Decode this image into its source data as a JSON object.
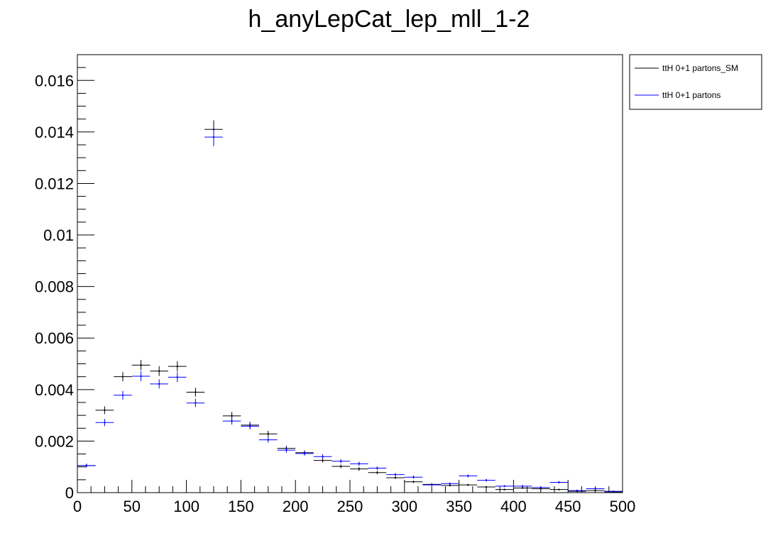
{
  "chart_data": {
    "type": "scatter",
    "title": "h_anyLepCat_lep_mll_1-2",
    "xlabel": "",
    "ylabel": "",
    "xlim": [
      0,
      500
    ],
    "ylim": [
      0,
      0.017
    ],
    "grid": false,
    "legend_position": "top-right-outside",
    "x_ticks": [
      "0",
      "50",
      "100",
      "150",
      "200",
      "250",
      "300",
      "350",
      "400",
      "450",
      "500"
    ],
    "y_ticks": [
      "0",
      "0.002",
      "0.004",
      "0.006",
      "0.008",
      "0.01",
      "0.012",
      "0.014",
      "0.016"
    ],
    "bin_width": 16.67,
    "x": [
      8.33,
      25,
      41.67,
      58.33,
      75,
      91.67,
      108.33,
      125,
      141.67,
      158.33,
      175,
      191.67,
      208.33,
      225,
      241.67,
      258.33,
      275,
      291.67,
      308.33,
      325,
      341.67,
      358.33,
      375,
      391.67,
      408.33,
      425,
      441.67,
      458.33,
      475,
      491.67
    ],
    "series": [
      {
        "name": "ttH 0+1 partons_SM",
        "color": "#000000",
        "values": [
          0.00105,
          0.0032,
          0.0045,
          0.00495,
          0.00472,
          0.0049,
          0.0039,
          0.0141,
          0.00298,
          0.00262,
          0.00228,
          0.00172,
          0.00155,
          0.00125,
          0.00102,
          0.00092,
          0.00078,
          0.00058,
          0.00042,
          0.00032,
          0.00028,
          0.0003,
          0.00022,
          0.00012,
          0.00018,
          0.00015,
          0.00012,
          5e-05,
          8e-05,
          3e-05
        ],
        "errors": [
          7e-05,
          0.00015,
          0.00018,
          0.0002,
          0.00019,
          0.0002,
          0.00017,
          0.00035,
          0.00015,
          0.00013,
          0.00012,
          0.0001,
          9e-05,
          8e-05,
          7e-05,
          7e-05,
          6e-05,
          5e-05,
          4e-05,
          4e-05,
          4e-05,
          4e-05,
          3e-05,
          3e-05,
          3e-05,
          3e-05,
          3e-05,
          2e-05,
          2e-05,
          2e-05
        ]
      },
      {
        "name": "ttH 0+1 partons",
        "color": "#0000ff",
        "values": [
          0.00105,
          0.00272,
          0.00378,
          0.00452,
          0.00422,
          0.00448,
          0.00348,
          0.0138,
          0.00278,
          0.00258,
          0.00205,
          0.00165,
          0.00152,
          0.0014,
          0.00122,
          0.00112,
          0.00095,
          0.0007,
          0.0006,
          0.0003,
          0.00035,
          0.00065,
          0.00048,
          0.00025,
          0.00025,
          0.0002,
          0.0004,
          8e-05,
          0.00015,
          5e-05
        ],
        "errors": [
          7e-05,
          0.00014,
          0.00017,
          0.00019,
          0.00018,
          0.00019,
          0.00016,
          0.00035,
          0.00014,
          0.00013,
          0.00011,
          0.0001,
          9e-05,
          9e-05,
          8e-05,
          8e-05,
          7e-05,
          6e-05,
          6e-05,
          4e-05,
          4e-05,
          6e-05,
          5e-05,
          4e-05,
          4e-05,
          3e-05,
          5e-05,
          2e-05,
          3e-05,
          2e-05
        ]
      }
    ]
  }
}
